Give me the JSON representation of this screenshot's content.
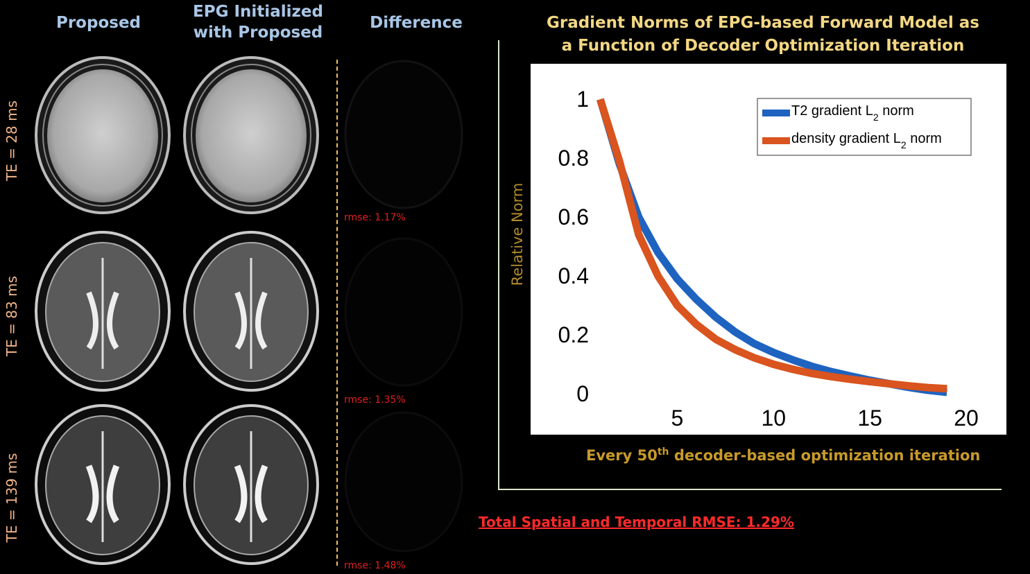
{
  "columns": {
    "proposed": "Proposed",
    "epg_line1": "EPG Initialized",
    "epg_line2": "with Proposed",
    "difference": "Difference"
  },
  "rows": [
    {
      "label": "TE = 28 ms",
      "rmse": "rmse: 1.17%"
    },
    {
      "label": "TE = 83 ms",
      "rmse": "rmse: 1.35%"
    },
    {
      "label": "TE = 139 ms",
      "rmse": "rmse: 1.48%"
    }
  ],
  "plot": {
    "title_line1": "Gradient Norms of EPG-based Forward Model as",
    "title_line2": "a Function of Decoder Optimization Iteration",
    "ylabel": "Relative Norm",
    "xlabel_pre": "Every 50",
    "xlabel_sup": "th",
    "xlabel_post": " decoder-based optimization iteration"
  },
  "total_rmse": "Total Spatial and Temporal RMSE: 1.29%",
  "chart_data": {
    "type": "line",
    "xlim": [
      0.7,
      20
    ],
    "ylim": [
      0,
      1.05
    ],
    "x_ticks": [
      5,
      10,
      15,
      20
    ],
    "y_ticks": [
      0,
      0.2,
      0.4,
      0.6,
      0.8,
      1
    ],
    "y_tick_labels": [
      "0",
      "0.2",
      "0.4",
      "0.6",
      "0.8",
      "1"
    ],
    "x_tick_labels": [
      "5",
      "10",
      "15",
      "20"
    ],
    "legend_position": "top-right",
    "series": [
      {
        "name": "T2 gradient L",
        "name_sub": "2",
        "name_post": " norm",
        "color": "#1f63c0",
        "x": [
          1,
          2,
          3,
          4,
          5,
          6,
          7,
          8,
          9,
          10,
          11,
          12,
          13,
          14,
          15,
          16,
          17,
          18,
          19
        ],
        "y": [
          1.0,
          0.78,
          0.6,
          0.48,
          0.39,
          0.32,
          0.26,
          0.21,
          0.17,
          0.14,
          0.115,
          0.093,
          0.075,
          0.06,
          0.046,
          0.034,
          0.022,
          0.012,
          0.005
        ]
      },
      {
        "name": "density gradient L",
        "name_sub": "2",
        "name_post": " norm",
        "color": "#d9541e",
        "x": [
          1,
          2,
          3,
          4,
          5,
          6,
          7,
          8,
          9,
          10,
          11,
          12,
          13,
          14,
          15,
          16,
          17,
          18,
          19
        ],
        "y": [
          1.0,
          0.79,
          0.54,
          0.4,
          0.3,
          0.235,
          0.185,
          0.15,
          0.122,
          0.1,
          0.083,
          0.069,
          0.058,
          0.049,
          0.041,
          0.034,
          0.027,
          0.021,
          0.017
        ]
      }
    ]
  }
}
